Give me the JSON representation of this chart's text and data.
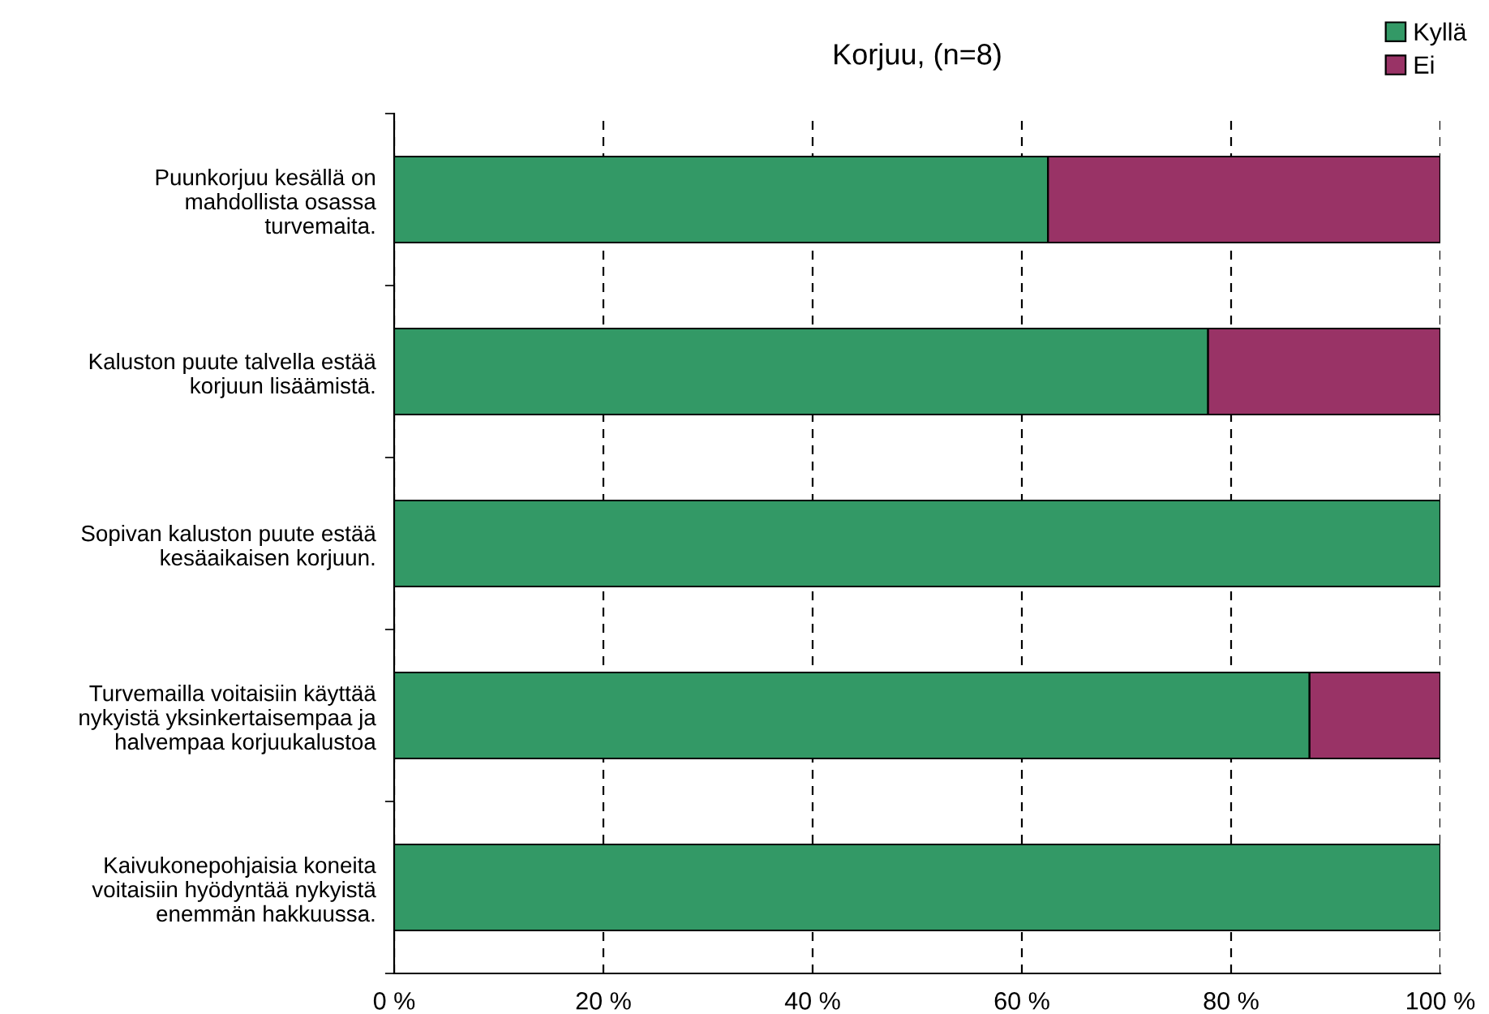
{
  "chart_data": {
    "type": "bar",
    "orientation": "horizontal",
    "stacked": true,
    "title": "Korjuu, (n=8)",
    "categories": [
      "Puunkorjuu kesällä on\nmahdollista osassa\nturvemaita.",
      "Kaluston puute talvella estää\nkorjuun lisäämistä.",
      "Sopivan kaluston puute estää\nkesäaikaisen korjuun.",
      "Turvemailla voitaisiin käyttää\nnykyistä yksinkertaisempaa ja\nhalvempaa korjuukalustoa",
      "Kaivukonepohjaisia koneita\nvoitaisiin hyödyntää nykyistä\nenemmän hakkuussa."
    ],
    "series": [
      {
        "name": "Kyllä",
        "color": "#339966",
        "values": [
          62.5,
          77.8,
          100,
          87.5,
          100
        ]
      },
      {
        "name": "Ei",
        "color": "#993366",
        "values": [
          37.5,
          22.2,
          0,
          12.5,
          0
        ]
      }
    ],
    "xlim": [
      0,
      100
    ],
    "xticks": [
      {
        "value": 0,
        "label": "0 %"
      },
      {
        "value": 20,
        "label": "20 %"
      },
      {
        "value": 40,
        "label": "40 %"
      },
      {
        "value": 60,
        "label": "60 %"
      },
      {
        "value": 80,
        "label": "80 %"
      },
      {
        "value": 100,
        "label": "100 %"
      }
    ],
    "grid": "x",
    "line_style": "dashed",
    "legend": "top right"
  }
}
